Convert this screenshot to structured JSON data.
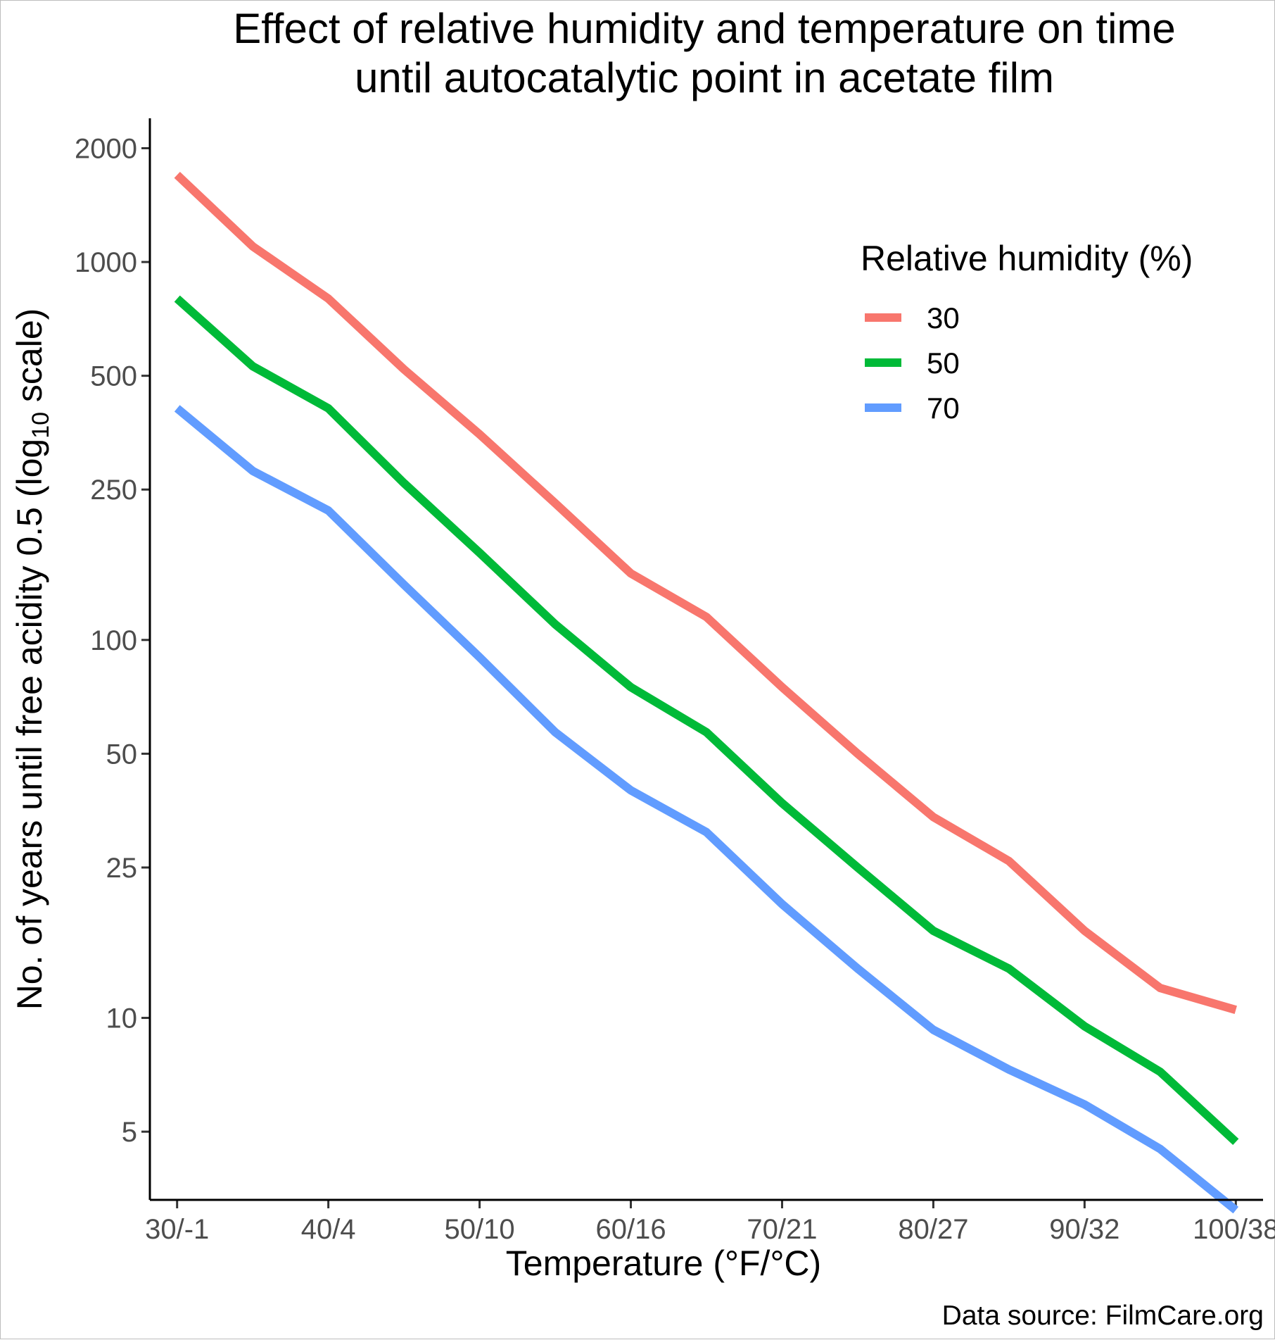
{
  "chart_data": {
    "type": "line",
    "title_lines": [
      "Effect of relative humidity and temperature on time",
      "until autocatalytic point in acetate film"
    ],
    "xlabel": "Temperature (°F/°C)",
    "ylabel": {
      "prefix": "No. of years until free acidity 0.5 (log",
      "subscript": "10",
      "suffix": " scale)"
    },
    "caption": "Data source: FilmCare.org",
    "y_scale": "log10",
    "ylim": [
      3.3,
      2400
    ],
    "y_ticks": [
      {
        "value": 5,
        "label": "5"
      },
      {
        "value": 10,
        "label": "10"
      },
      {
        "value": 25,
        "label": "25"
      },
      {
        "value": 50,
        "label": "50"
      },
      {
        "value": 100,
        "label": "100"
      },
      {
        "value": 250,
        "label": "250"
      },
      {
        "value": 500,
        "label": "500"
      },
      {
        "value": 1000,
        "label": "1000"
      },
      {
        "value": 2000,
        "label": "2000"
      }
    ],
    "xlim": [
      28.2,
      101.8
    ],
    "x_ticks": [
      {
        "value": 30,
        "label": "30/-1"
      },
      {
        "value": 40,
        "label": "40/4"
      },
      {
        "value": 50,
        "label": "50/10"
      },
      {
        "value": 60,
        "label": "60/16"
      },
      {
        "value": 70,
        "label": "70/21"
      },
      {
        "value": 80,
        "label": "80/27"
      },
      {
        "value": 90,
        "label": "90/32"
      },
      {
        "value": 100,
        "label": "100/38"
      }
    ],
    "x": [
      30,
      35,
      40,
      45,
      50,
      55,
      60,
      65,
      70,
      75,
      80,
      85,
      90,
      95,
      100
    ],
    "legend": {
      "title": "Relative humidity (%)",
      "position": "top-right",
      "key_shape": "line"
    },
    "grid": false,
    "series": [
      {
        "name": "30",
        "color": "#F8766D",
        "values": [
          1700,
          1100,
          800,
          520,
          350,
          230,
          150,
          115,
          75,
          50,
          34,
          26,
          17,
          12,
          10.5
        ]
      },
      {
        "name": "50",
        "color": "#00BA38",
        "values": [
          800,
          530,
          410,
          260,
          170,
          110,
          75,
          57,
          37,
          25,
          17,
          13.5,
          9.5,
          7.2,
          4.7
        ]
      },
      {
        "name": "70",
        "color": "#619CFF",
        "values": [
          410,
          280,
          220,
          140,
          90,
          57,
          40,
          31,
          20,
          13.5,
          9.3,
          7.3,
          5.9,
          4.5,
          3.1
        ]
      }
    ]
  }
}
